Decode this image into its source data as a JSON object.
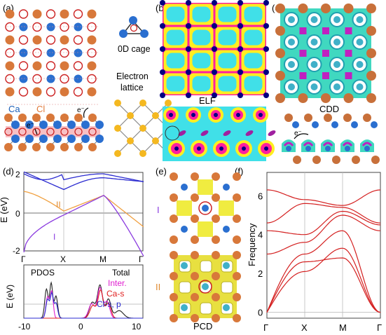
{
  "panel_labels": [
    "(a)",
    "(b)",
    "(c)",
    "(d)",
    "(e)",
    "(f)"
  ],
  "panel_a": {
    "cage_label": "0D cage",
    "electron_lattice_label_1": "Electron",
    "electron_lattice_label_2": "lattice",
    "ca_label": "Ca",
    "cl_label": "Cl",
    "electron_label_1": "e⁻",
    "electron_label_2": "e⁻"
  },
  "panel_b": {
    "label": "ELF"
  },
  "panel_c": {
    "label": "CDD",
    "electron_label": "e⁻"
  },
  "panel_d": {
    "ylabel": "E (eV)",
    "ylabel_pdos": "E (eV)",
    "yticks": [
      "2",
      "0",
      "-2"
    ],
    "xticks_band": [
      "Γ",
      "X",
      "M",
      "Γ"
    ],
    "band_labels": [
      "II",
      "I"
    ],
    "pdos_title": "PDOS",
    "legend": [
      "Total",
      "Inter.",
      "Ca-s",
      "Cl-s, p"
    ],
    "pdos_xticks": [
      "-10",
      "0",
      "10"
    ],
    "colors": {
      "blue": "#2b2bd0",
      "orange": "#f0a040",
      "purple": "#8a3adf",
      "magenta": "#e020d0",
      "red": "#e02020"
    }
  },
  "panel_e": {
    "label": "PCD",
    "band_labels": [
      "I",
      "II"
    ]
  },
  "chart_data": {
    "type": "line",
    "title": "",
    "xlabel": "",
    "ylabel": "Frequency",
    "x": [
      "Γ",
      "X",
      "M",
      "Γ"
    ],
    "yticks": [
      "0",
      "2",
      "4",
      "6"
    ],
    "ylim": [
      -0.3,
      7.2
    ],
    "series": [
      {
        "values": [
          0,
          2.6,
          2.8,
          0
        ]
      },
      {
        "values": [
          0,
          2.1,
          3.3,
          0
        ]
      },
      {
        "values": [
          0,
          3.0,
          4.2,
          0
        ]
      },
      {
        "values": [
          3.0,
          3.6,
          5.0,
          4.2
        ]
      },
      {
        "values": [
          4.2,
          4.0,
          5.2,
          4.5
        ]
      },
      {
        "values": [
          4.6,
          5.6,
          5.4,
          4.6
        ]
      },
      {
        "values": [
          6.3,
          5.8,
          5.5,
          6.3
        ]
      }
    ],
    "color": "#d42020"
  }
}
